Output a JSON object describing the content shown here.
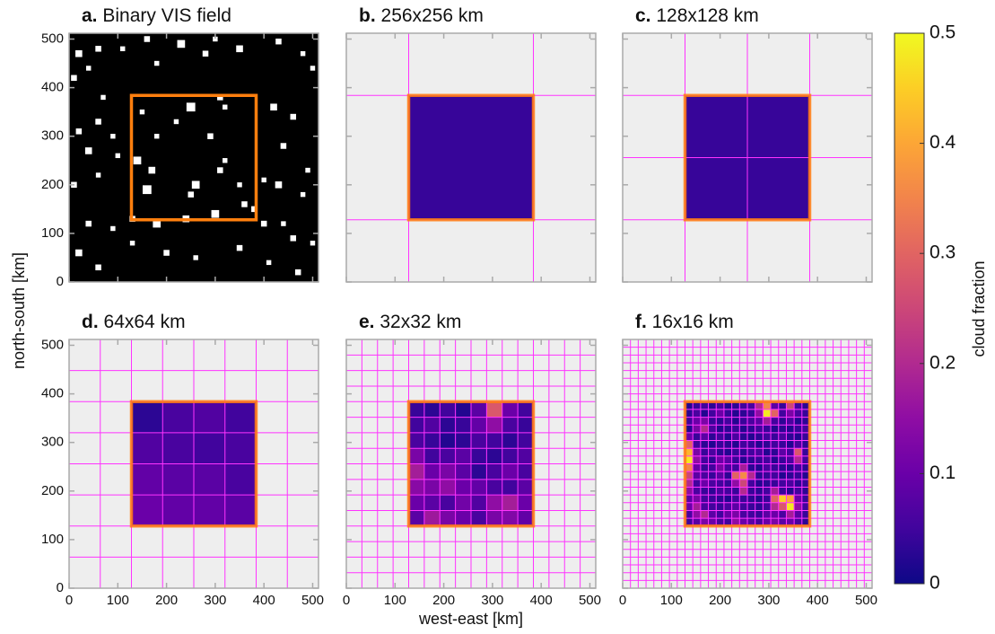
{
  "chart_data": {
    "type": "heatmap",
    "xlabel": "west-east [km]",
    "ylabel": "north-south [km]",
    "xlim": [
      0,
      512
    ],
    "ylim": [
      0,
      512
    ],
    "xticks": [
      0,
      100,
      200,
      300,
      400,
      500
    ],
    "yticks": [
      0,
      100,
      200,
      300,
      400,
      500
    ],
    "region": [
      128,
      384
    ],
    "region_color": "#ff7f0e",
    "grid_color": "#ff33ff",
    "colorbar": {
      "label": "cloud fraction",
      "colormap": "plasma",
      "lim": [
        0,
        0.5
      ],
      "ticks": [
        0,
        0.1,
        0.2,
        0.3,
        0.4,
        0.5
      ]
    },
    "panels": [
      {
        "label": "a.",
        "title": "Binary VIS field",
        "clouds": [
          [
            20,
            470,
            14
          ],
          [
            40,
            440,
            10
          ],
          [
            60,
            480,
            12
          ],
          [
            110,
            480,
            10
          ],
          [
            160,
            500,
            12
          ],
          [
            230,
            490,
            16
          ],
          [
            280,
            470,
            12
          ],
          [
            300,
            500,
            10
          ],
          [
            180,
            450,
            10
          ],
          [
            350,
            480,
            14
          ],
          [
            430,
            495,
            12
          ],
          [
            480,
            470,
            10
          ],
          [
            500,
            440,
            10
          ],
          [
            10,
            420,
            12
          ],
          [
            70,
            380,
            10
          ],
          [
            420,
            360,
            14
          ],
          [
            460,
            340,
            12
          ],
          [
            310,
            380,
            12
          ],
          [
            320,
            360,
            10
          ],
          [
            250,
            360,
            18
          ],
          [
            290,
            300,
            12
          ],
          [
            220,
            330,
            10
          ],
          [
            150,
            350,
            10
          ],
          [
            180,
            300,
            10
          ],
          [
            20,
            310,
            12
          ],
          [
            40,
            270,
            14
          ],
          [
            100,
            260,
            10
          ],
          [
            140,
            250,
            16
          ],
          [
            10,
            200,
            12
          ],
          [
            60,
            220,
            10
          ],
          [
            160,
            190,
            18
          ],
          [
            170,
            230,
            14
          ],
          [
            260,
            200,
            16
          ],
          [
            250,
            180,
            12
          ],
          [
            310,
            230,
            12
          ],
          [
            320,
            250,
            10
          ],
          [
            350,
            200,
            10
          ],
          [
            360,
            160,
            12
          ],
          [
            400,
            210,
            10
          ],
          [
            440,
            280,
            12
          ],
          [
            430,
            200,
            14
          ],
          [
            490,
            230,
            10
          ],
          [
            480,
            180,
            10
          ],
          [
            400,
            120,
            12
          ],
          [
            440,
            120,
            10
          ],
          [
            460,
            90,
            12
          ],
          [
            380,
            150,
            12
          ],
          [
            300,
            140,
            16
          ],
          [
            240,
            130,
            14
          ],
          [
            180,
            120,
            16
          ],
          [
            130,
            130,
            12
          ],
          [
            90,
            110,
            10
          ],
          [
            40,
            120,
            12
          ],
          [
            20,
            60,
            14
          ],
          [
            60,
            30,
            12
          ],
          [
            130,
            80,
            10
          ],
          [
            200,
            60,
            12
          ],
          [
            260,
            50,
            10
          ],
          [
            350,
            70,
            12
          ],
          [
            410,
            40,
            10
          ],
          [
            470,
            20,
            12
          ],
          [
            500,
            80,
            10
          ],
          [
            60,
            330,
            12
          ],
          [
            90,
            300,
            10
          ]
        ]
      },
      {
        "label": "b.",
        "title": "256x256 km",
        "values": [
          [
            0.04
          ]
        ]
      },
      {
        "label": "c.",
        "title": "128x128 km",
        "values": [
          [
            0.04,
            0.04
          ],
          [
            0.04,
            0.04
          ]
        ]
      },
      {
        "label": "d.",
        "title": "64x64 km",
        "values": [
          [
            0.03,
            0.06,
            0.07,
            0.05
          ],
          [
            0.07,
            0.06,
            0.05,
            0.06
          ],
          [
            0.09,
            0.08,
            0.08,
            0.06
          ],
          [
            0.1,
            0.09,
            0.09,
            0.08
          ]
        ]
      },
      {
        "label": "e.",
        "title": "32x32 km",
        "values": [
          [
            0.04,
            0.03,
            0.05,
            0.02,
            0.08,
            0.28,
            0.1,
            0.05
          ],
          [
            0.05,
            0.07,
            0.03,
            0.04,
            0.09,
            0.15,
            0.06,
            0.04
          ],
          [
            0.06,
            0.04,
            0.02,
            0.03,
            0.06,
            0.05,
            0.03,
            0.05
          ],
          [
            0.12,
            0.05,
            0.06,
            0.08,
            0.04,
            0.03,
            0.05,
            0.07
          ],
          [
            0.18,
            0.1,
            0.12,
            0.08,
            0.03,
            0.06,
            0.1,
            0.06
          ],
          [
            0.14,
            0.12,
            0.15,
            0.1,
            0.09,
            0.06,
            0.05,
            0.08
          ],
          [
            0.1,
            0.08,
            0.06,
            0.11,
            0.07,
            0.15,
            0.18,
            0.1
          ],
          [
            0.08,
            0.17,
            0.12,
            0.1,
            0.06,
            0.12,
            0.13,
            0.09
          ]
        ]
      },
      {
        "label": "f.",
        "title": "16x16 km",
        "values": [
          [
            0.02,
            0.04,
            0.05,
            0.03,
            0.06,
            0.02,
            0.03,
            0.05,
            0.06,
            0.2,
            0.35,
            0.08,
            0.04,
            0.25,
            0.05,
            0.03
          ],
          [
            0.03,
            0.06,
            0.02,
            0.05,
            0.1,
            0.04,
            0.02,
            0.03,
            0.04,
            0.15,
            0.48,
            0.3,
            0.05,
            0.12,
            0.06,
            0.04
          ],
          [
            0.05,
            0.1,
            0.12,
            0.04,
            0.03,
            0.05,
            0.02,
            0.04,
            0.06,
            0.08,
            0.18,
            0.05,
            0.03,
            0.06,
            0.02,
            0.03
          ],
          [
            0.02,
            0.12,
            0.2,
            0.06,
            0.02,
            0.03,
            0.04,
            0.02,
            0.03,
            0.05,
            0.04,
            0.02,
            0.03,
            0.02,
            0.04,
            0.05
          ],
          [
            0.1,
            0.04,
            0.08,
            0.03,
            0.05,
            0.02,
            0.06,
            0.03,
            0.02,
            0.03,
            0.05,
            0.04,
            0.06,
            0.03,
            0.02,
            0.04
          ],
          [
            0.3,
            0.05,
            0.03,
            0.02,
            0.04,
            0.03,
            0.02,
            0.05,
            0.04,
            0.02,
            0.03,
            0.05,
            0.04,
            0.02,
            0.06,
            0.03
          ],
          [
            0.42,
            0.12,
            0.04,
            0.06,
            0.03,
            0.02,
            0.04,
            0.03,
            0.05,
            0.06,
            0.02,
            0.03,
            0.08,
            0.05,
            0.28,
            0.04
          ],
          [
            0.48,
            0.15,
            0.05,
            0.03,
            0.1,
            0.08,
            0.04,
            0.02,
            0.03,
            0.04,
            0.05,
            0.02,
            0.04,
            0.06,
            0.2,
            0.05
          ],
          [
            0.35,
            0.1,
            0.04,
            0.05,
            0.12,
            0.06,
            0.05,
            0.18,
            0.03,
            0.02,
            0.06,
            0.04,
            0.03,
            0.02,
            0.05,
            0.03
          ],
          [
            0.25,
            0.08,
            0.06,
            0.04,
            0.08,
            0.03,
            0.3,
            0.36,
            0.2,
            0.03,
            0.04,
            0.05,
            0.02,
            0.03,
            0.04,
            0.02
          ],
          [
            0.2,
            0.05,
            0.1,
            0.06,
            0.05,
            0.04,
            0.15,
            0.25,
            0.05,
            0.02,
            0.03,
            0.04,
            0.05,
            0.06,
            0.03,
            0.04
          ],
          [
            0.15,
            0.06,
            0.04,
            0.03,
            0.06,
            0.05,
            0.04,
            0.2,
            0.04,
            0.03,
            0.05,
            0.18,
            0.04,
            0.02,
            0.05,
            0.03
          ],
          [
            0.08,
            0.12,
            0.05,
            0.04,
            0.03,
            0.02,
            0.05,
            0.04,
            0.03,
            0.02,
            0.04,
            0.3,
            0.45,
            0.4,
            0.1,
            0.04
          ],
          [
            0.1,
            0.18,
            0.06,
            0.05,
            0.04,
            0.06,
            0.08,
            0.05,
            0.04,
            0.03,
            0.05,
            0.2,
            0.28,
            0.48,
            0.15,
            0.05
          ],
          [
            0.06,
            0.15,
            0.2,
            0.08,
            0.05,
            0.1,
            0.12,
            0.06,
            0.05,
            0.04,
            0.08,
            0.1,
            0.06,
            0.18,
            0.08,
            0.04
          ],
          [
            0.05,
            0.08,
            0.12,
            0.1,
            0.06,
            0.05,
            0.15,
            0.1,
            0.08,
            0.06,
            0.1,
            0.12,
            0.08,
            0.1,
            0.06,
            0.03
          ]
        ]
      }
    ]
  }
}
